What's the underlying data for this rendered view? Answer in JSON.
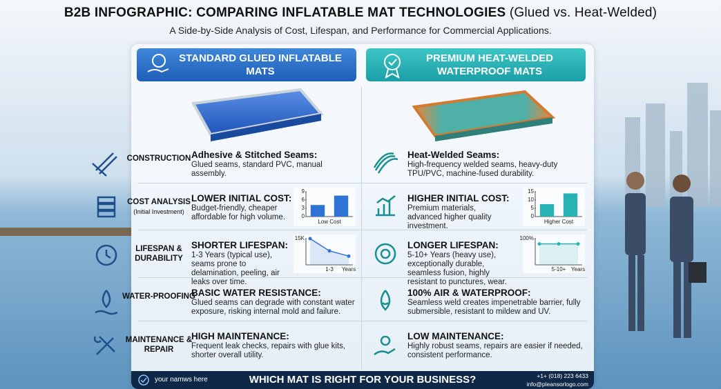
{
  "header": {
    "title": "B2B INFOGRAPHIC: COMPARING INFLATABLE MAT TECHNOLOGIES",
    "title_suffix": "(Glued vs. Heat-Welded)",
    "subtitle": "A Side-by-Side Analysis of Cost, Lifespan, and Performance for Commercial Applications."
  },
  "columns": [
    "STANDARD GLUED INFLATABLE MATS",
    "PREMIUM HEAT-WELDED WATERPROOF MATS"
  ],
  "rows": [
    {
      "label": "CONSTRUCTION",
      "left": {
        "heading": "Adhesive & Stitched Seams:",
        "text": "Glued seams, standard PVC, manual assembly."
      },
      "right": {
        "heading": "Heat-Welded Seams:",
        "text": "High-frequency welded seams, heavy-duty TPU/PVC, machine-fused durability."
      }
    },
    {
      "label": "COST ANALYSIS",
      "note": "(Initial Investment)",
      "left": {
        "heading": "LOWER INITIAL COST:",
        "text": "Budget-friendly, cheaper affordable for high volume.",
        "chart": {
          "type": "bar",
          "values": [
            4.2,
            7.6
          ],
          "ylim": [
            0,
            9
          ],
          "yticks": [
            0,
            3,
            6,
            9
          ],
          "caption": "Low Cost"
        }
      },
      "right": {
        "heading": "HIGHER INITIAL COST:",
        "text": "Premium materials, advanced higher quality investment.",
        "chart": {
          "type": "bar",
          "values": [
            7.5,
            14
          ],
          "ylim": [
            0,
            15
          ],
          "yticks": [
            0,
            5,
            10,
            15
          ],
          "caption": "Higher Cost"
        }
      }
    },
    {
      "label": "LIFESPAN & DURABILITY",
      "left": {
        "heading": "SHORTER LIFESPAN:",
        "text": "1-3 Years (typical use), seams prone to delamination, peeling, air leaks over time.",
        "chart": {
          "type": "line",
          "values": [
            15000,
            8000,
            5000
          ],
          "ylim": [
            0,
            15000
          ],
          "yticks": [
            {
              "value": 15000,
              "label": "15K"
            }
          ],
          "x_labels": [
            "1-3",
            "Years"
          ]
        }
      },
      "right": {
        "heading": "LONGER LIFESPAN:",
        "text": "5-10+ Years (heavy use), exceptionally durable, seamless fusion, highly resistant to punctures, wear.",
        "chart": {
          "type": "line",
          "values": [
            80,
            80,
            80
          ],
          "ylim": [
            0,
            100
          ],
          "yticks": [
            {
              "value": 100,
              "label": "100%"
            }
          ],
          "x_labels": [
            "5-10+",
            "Years"
          ]
        }
      }
    },
    {
      "label": "WATER-PROOFING",
      "left": {
        "heading": "BASIC WATER RESISTANCE:",
        "text": "Glued seams can degrade with constant water exposure, risking internal mold and failure."
      },
      "right": {
        "heading": "100% AIR & WATERPROOF:",
        "text": "Seamless weld creates impenetrable barrier, fully submersible, resistant to mildew and UV."
      }
    },
    {
      "label": "MAINTENANCE & REPAIR",
      "left": {
        "heading": "HIGH MAINTENANCE:",
        "text": "Frequent leak checks, repairs with glue kits, shorter overall utility."
      },
      "right": {
        "heading": "LOW MAINTENANCE:",
        "text": "Highly robust seams, repairs are easier if needed, consistent performance."
      }
    }
  ],
  "footer": {
    "brand": "your namws here",
    "question": "WHICH MAT IS RIGHT FOR YOUR BUSINESS?",
    "phone": "+1+ (018) 223 6433",
    "email": "info@pleansorlogo.com"
  }
}
